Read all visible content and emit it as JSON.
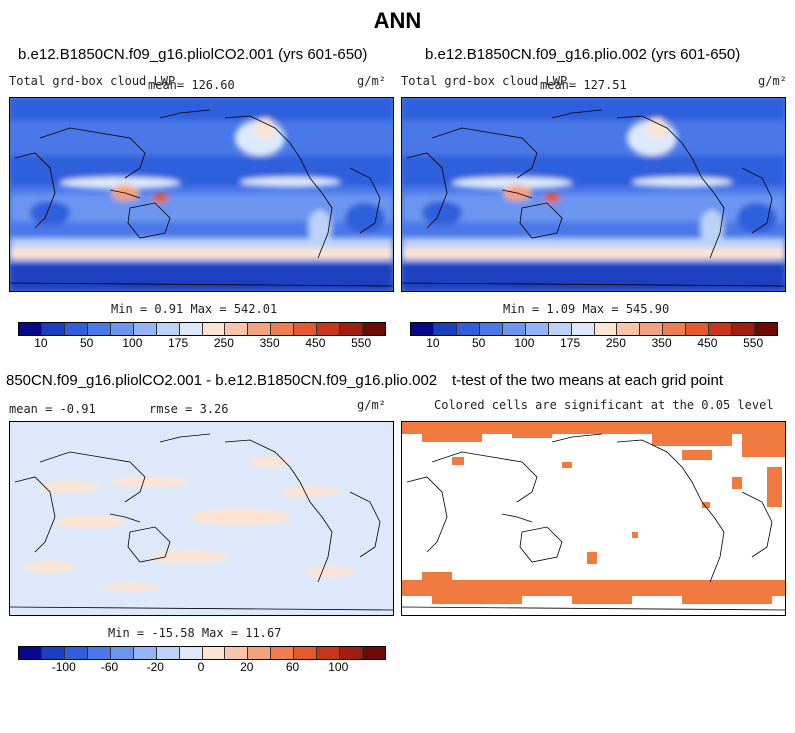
{
  "main_title": "ANN",
  "panels": {
    "top_left": {
      "title": "b.e12.B1850CN.f09_g16.pliolCO2.001 (yrs 601-650)",
      "variable": "Total grd-box cloud LWP",
      "mean": "mean= 126.60",
      "units": "g/m²",
      "minmax": "Min =   0.91 Max = 542.01"
    },
    "top_right": {
      "title": "b.e12.B1850CN.f09_g16.plio.002 (yrs 601-650)",
      "variable": "Total grd-box cloud LWP",
      "mean": "mean= 127.51",
      "units": "g/m²",
      "minmax": "Min =   1.09 Max = 545.90"
    },
    "bottom_left": {
      "title": "850CN.f09_g16.pliolCO2.001 - b.e12.B1850CN.f09_g16.plio.002",
      "mean": "mean =  -0.91",
      "rmse": "rmse =   3.26",
      "units": "g/m²",
      "minmax": "Min = -15.58 Max =  11.67"
    },
    "bottom_right": {
      "title": "t-test of the two means at each grid point",
      "subtitle": "Colored cells are significant at the 0.05 level"
    }
  },
  "colorbar_abs": {
    "colors": [
      "#08088a",
      "#1a3fbf",
      "#2f5fdc",
      "#4a78e8",
      "#6c95f0",
      "#93b4f5",
      "#bcd2f8",
      "#dde9fb",
      "#fde4d2",
      "#f8c5a8",
      "#f2a27c",
      "#ec7e52",
      "#e45a2e",
      "#c9351a",
      "#a21d10",
      "#6e0a05"
    ],
    "ticks": [
      "10",
      "50",
      "100",
      "175",
      "250",
      "350",
      "450",
      "550"
    ]
  },
  "colorbar_diff": {
    "colors": [
      "#08088a",
      "#1a3fbf",
      "#2f5fdc",
      "#4a78e8",
      "#6c95f0",
      "#93b4f5",
      "#bcd2f8",
      "#dde9fb",
      "#fde4d2",
      "#f8c5a8",
      "#f2a27c",
      "#ec7e52",
      "#e45a2e",
      "#c9351a",
      "#a21d10",
      "#6e0a05"
    ],
    "ticks": [
      "-100",
      "-60",
      "-20",
      "0",
      "20",
      "60",
      "100"
    ]
  }
}
